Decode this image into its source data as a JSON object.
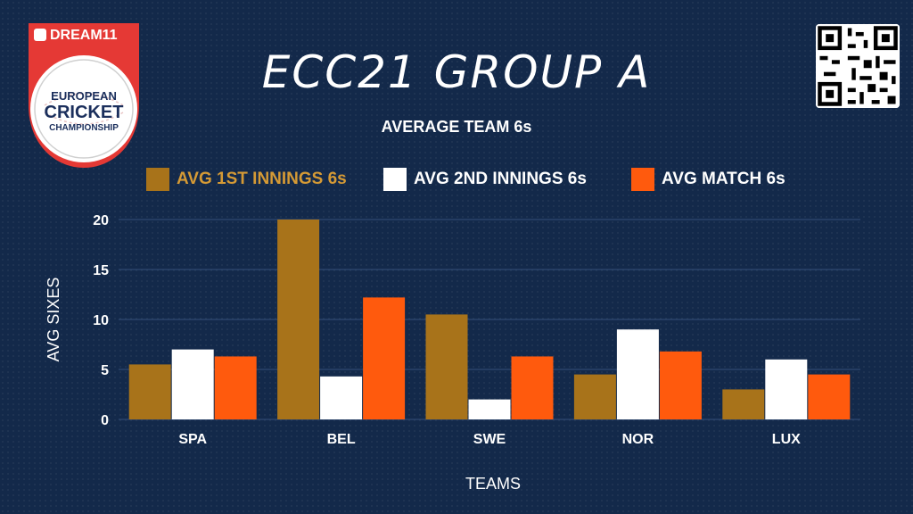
{
  "header": {
    "title": "ECC21 GROUP A",
    "logo": {
      "brand": "DREAM11",
      "line1": "EUROPEAN",
      "line2": "CRICKET",
      "line3": "CHAMPIONSHIP"
    }
  },
  "colors": {
    "background": "#13294a",
    "first": "#a8731a",
    "second": "#ffffff",
    "match": "#ff5a0d",
    "grid": "#34507a"
  },
  "chart_data": {
    "type": "bar",
    "title": "AVERAGE TEAM 6s",
    "xlabel": "TEAMS",
    "ylabel": "AVG SIXES",
    "ylim": [
      0,
      20
    ],
    "yticks": [
      "0",
      "5",
      "10",
      "15",
      "20"
    ],
    "categories": [
      "SPA",
      "BEL",
      "SWE",
      "NOR",
      "LUX"
    ],
    "series": [
      {
        "name": "AVG 1ST INNINGS 6s",
        "values": [
          5.5,
          20,
          10.5,
          4.5,
          3
        ]
      },
      {
        "name": "AVG 2ND INNINGS 6s",
        "values": [
          7,
          4.3,
          2,
          9,
          6
        ]
      },
      {
        "name": "AVG MATCH 6s",
        "values": [
          6.3,
          12.2,
          6.3,
          6.8,
          4.5
        ]
      }
    ],
    "grid": true,
    "legend_position": "top"
  }
}
